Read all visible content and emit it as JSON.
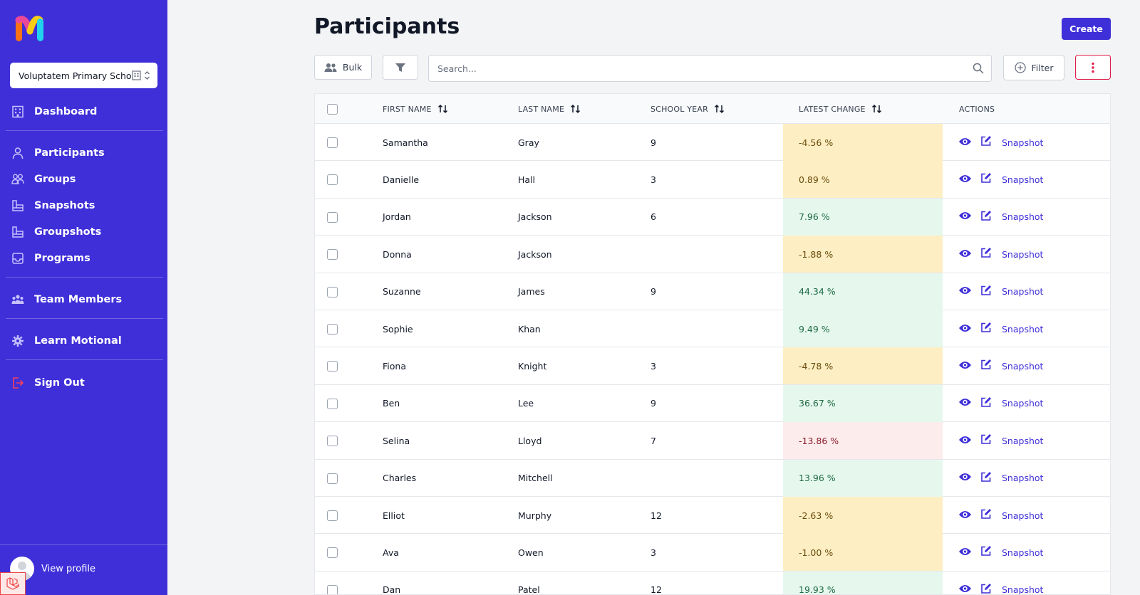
{
  "sidebar": {
    "school_selector": "Voluptatem Primary Scho...",
    "items": [
      {
        "label": "Dashboard",
        "icon": "building-icon"
      },
      {
        "label": "Participants",
        "icon": "user-icon"
      },
      {
        "label": "Groups",
        "icon": "users-icon"
      },
      {
        "label": "Snapshots",
        "icon": "folder-icon"
      },
      {
        "label": "Groupshots",
        "icon": "folder-icon"
      },
      {
        "label": "Programs",
        "icon": "inbox-icon"
      },
      {
        "label": "Team Members",
        "icon": "team-icon"
      },
      {
        "label": "Learn Motional",
        "icon": "gear-icon"
      },
      {
        "label": "Sign Out",
        "icon": "logout-icon"
      }
    ],
    "profile_label": "View profile"
  },
  "header": {
    "title": "Participants",
    "create_label": "Create"
  },
  "toolbar": {
    "bulk_label": "Bulk",
    "search_placeholder": "Search...",
    "filter_label": "Filter"
  },
  "table": {
    "columns": [
      "FIRST NAME",
      "LAST NAME",
      "SCHOOL YEAR",
      "LATEST CHANGE",
      "ACTIONS"
    ],
    "action_label": "Snapshot",
    "rows": [
      {
        "first": "Samantha",
        "last": "Gray",
        "year": "9",
        "change": "-4.56 %",
        "status": "warning"
      },
      {
        "first": "Danielle",
        "last": "Hall",
        "year": "3",
        "change": "0.89 %",
        "status": "warning"
      },
      {
        "first": "Jordan",
        "last": "Jackson",
        "year": "6",
        "change": "7.96 %",
        "status": "positive"
      },
      {
        "first": "Donna",
        "last": "Jackson",
        "year": "",
        "change": "-1.88 %",
        "status": "warning"
      },
      {
        "first": "Suzanne",
        "last": "James",
        "year": "9",
        "change": "44.34 %",
        "status": "positive"
      },
      {
        "first": "Sophie",
        "last": "Khan",
        "year": "",
        "change": "9.49 %",
        "status": "positive"
      },
      {
        "first": "Fiona",
        "last": "Knight",
        "year": "3",
        "change": "-4.78 %",
        "status": "warning"
      },
      {
        "first": "Ben",
        "last": "Lee",
        "year": "9",
        "change": "36.67 %",
        "status": "positive"
      },
      {
        "first": "Selina",
        "last": "Lloyd",
        "year": "7",
        "change": "-13.86 %",
        "status": "negative"
      },
      {
        "first": "Charles",
        "last": "Mitchell",
        "year": "",
        "change": "13.96 %",
        "status": "positive"
      },
      {
        "first": "Elliot",
        "last": "Murphy",
        "year": "12",
        "change": "-2.63 %",
        "status": "warning"
      },
      {
        "first": "Ava",
        "last": "Owen",
        "year": "3",
        "change": "-1.00 %",
        "status": "warning"
      },
      {
        "first": "Dan",
        "last": "Patel",
        "year": "12",
        "change": "19.93 %",
        "status": "positive"
      }
    ]
  },
  "colors": {
    "brand": "#3f2fd8",
    "warning_bg": "#fdefc3",
    "warning_text": "#6b4a0c",
    "positive_bg": "#e6f8ee",
    "positive_text": "#1f6b43",
    "negative_bg": "#fdecec",
    "negative_text": "#8a1c2b",
    "danger": "#e11d48"
  }
}
